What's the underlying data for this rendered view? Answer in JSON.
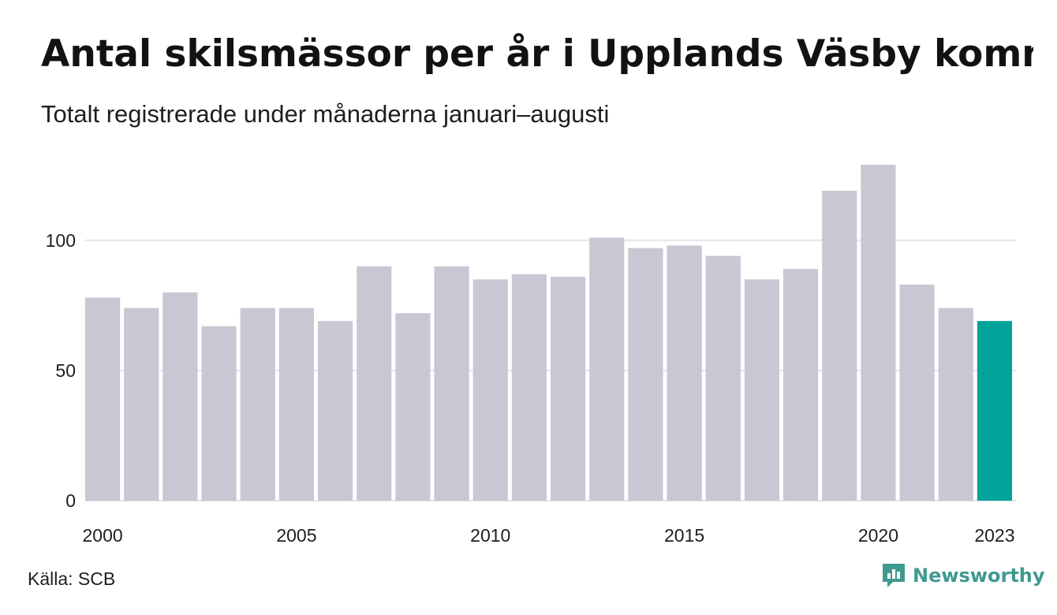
{
  "header": {
    "title": "Antal skilsmässor per år i Upplands Väsby kommun",
    "subtitle": "Totalt registrerade under månaderna januari–augusti"
  },
  "footer": {
    "source": "Källa: SCB",
    "brand": "Newsworthy",
    "brand_icon": "bar-chart-speech-bubble-icon",
    "brand_color": "#3f9a91"
  },
  "chart_data": {
    "type": "bar",
    "title": "Antal skilsmässor per år i Upplands Väsby kommun",
    "subtitle": "Totalt registrerade under månaderna januari–augusti",
    "categories": [
      2000,
      2001,
      2002,
      2003,
      2004,
      2005,
      2006,
      2007,
      2008,
      2009,
      2010,
      2011,
      2012,
      2013,
      2014,
      2015,
      2016,
      2017,
      2018,
      2019,
      2020,
      2021,
      2022,
      2023
    ],
    "values": [
      78,
      74,
      80,
      67,
      74,
      74,
      69,
      90,
      72,
      90,
      85,
      87,
      86,
      101,
      97,
      98,
      94,
      85,
      89,
      119,
      129,
      83,
      74,
      69
    ],
    "x_tick_labels": [
      "2000",
      "2005",
      "2010",
      "2015",
      "2020",
      "2023"
    ],
    "y_ticks": [
      0,
      50,
      100
    ],
    "ylim": [
      0,
      129
    ],
    "grid": true,
    "bar_color": "#c8c7d2",
    "highlight_color": "#00a39a",
    "highlight_category": 2023,
    "xlabel": "",
    "ylabel": ""
  }
}
